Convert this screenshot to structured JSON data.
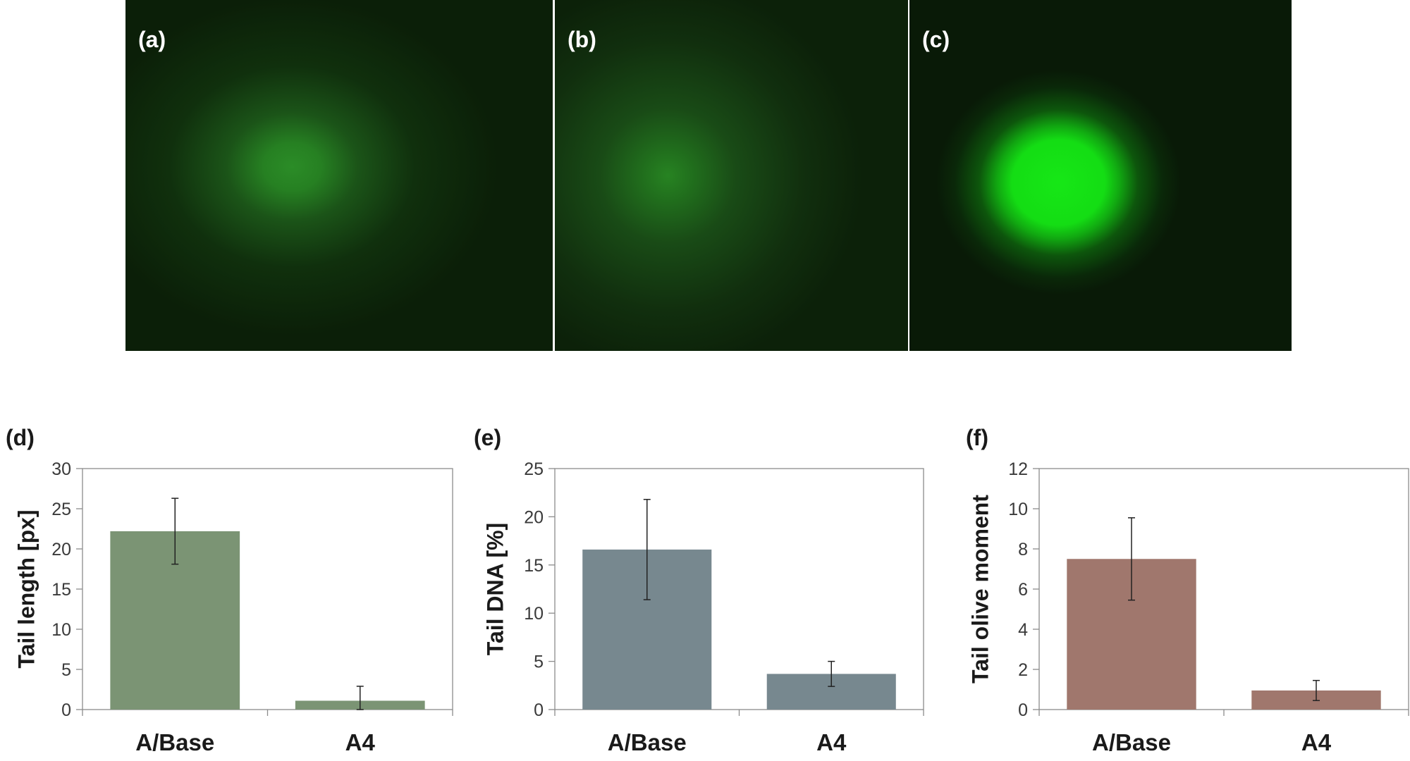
{
  "images": [
    {
      "label": "(a)",
      "glow_color": "#2a8a25",
      "glow_intensity": 0.55
    },
    {
      "label": "(b)",
      "glow_color": "#268222",
      "glow_intensity": 0.45
    },
    {
      "label": "(c)",
      "glow_color": "#15e815",
      "glow_intensity": 1.0
    }
  ],
  "chart_data": [
    {
      "type": "bar",
      "panel_label": "(d)",
      "ylabel": "Tail length [px]",
      "categories": [
        "A/Base",
        "A4"
      ],
      "values": [
        22.2,
        1.1
      ],
      "errors": [
        4.1,
        1.8
      ],
      "ylim": [
        0,
        30
      ],
      "yticks": [
        0,
        5,
        10,
        15,
        20,
        25,
        30
      ],
      "color": "#7b9474",
      "grid": false
    },
    {
      "type": "bar",
      "panel_label": "(e)",
      "ylabel": "Tail DNA [%]",
      "categories": [
        "A/Base",
        "A4"
      ],
      "values": [
        16.6,
        3.7
      ],
      "errors": [
        5.2,
        1.3
      ],
      "ylim": [
        0,
        25
      ],
      "yticks": [
        0,
        5,
        10,
        15,
        20,
        25
      ],
      "color": "#77888f",
      "grid": false
    },
    {
      "type": "bar",
      "panel_label": "(f)",
      "ylabel": "Tail olive moment",
      "categories": [
        "A/Base",
        "A4"
      ],
      "values": [
        7.5,
        0.95
      ],
      "errors": [
        2.05,
        0.5
      ],
      "ylim": [
        0,
        12
      ],
      "yticks": [
        0,
        2,
        4,
        6,
        8,
        10,
        12
      ],
      "color": "#a0776d",
      "grid": false
    }
  ]
}
